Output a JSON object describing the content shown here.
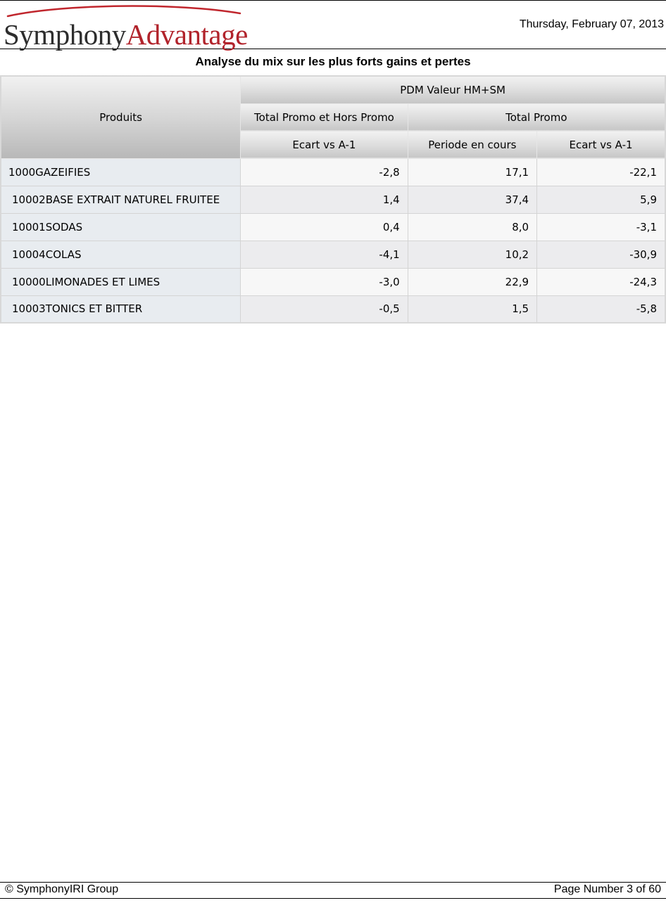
{
  "header": {
    "logo": {
      "part1": "Symphony",
      "part2": "Advantage",
      "color_part1": "#2d2d2d",
      "color_part2": "#b1232b",
      "swoosh_color": "#c0262d"
    },
    "date": "Thursday, February 07, 2013"
  },
  "report": {
    "title": "Analyse du mix sur les plus forts gains et pertes",
    "columns": {
      "produits": "Produits",
      "group_top": "PDM Valeur HM+SM",
      "group_total_promo_hors_promo": "Total Promo et Hors Promo",
      "group_total_promo": "Total Promo",
      "col_ecart_1": "Ecart vs A-1",
      "col_periode": "Periode en cours",
      "col_ecart_2": "Ecart vs A-1"
    },
    "rows": [
      {
        "product": "1000GAZEIFIES",
        "ecart_total": "-2,8",
        "periode_promo": "17,1",
        "ecart_promo": "-22,1"
      },
      {
        "product": "10002BASE EXTRAIT NATUREL FRUITEE",
        "ecart_total": "1,4",
        "periode_promo": "37,4",
        "ecart_promo": "5,9"
      },
      {
        "product": "10001SODAS",
        "ecart_total": "0,4",
        "periode_promo": "8,0",
        "ecart_promo": "-3,1"
      },
      {
        "product": "10004COLAS",
        "ecart_total": "-4,1",
        "periode_promo": "10,2",
        "ecart_promo": "-30,9"
      },
      {
        "product": "10000LIMONADES ET LIMES",
        "ecart_total": "-3,0",
        "periode_promo": "22,9",
        "ecart_promo": "-24,3"
      },
      {
        "product": "10003TONICS ET BITTER",
        "ecart_total": "-0,5",
        "periode_promo": "1,5",
        "ecart_promo": "-5,8"
      }
    ]
  },
  "footer": {
    "copyright": "© SymphonyIRI Group",
    "page_number": "Page Number 3 of 60"
  }
}
